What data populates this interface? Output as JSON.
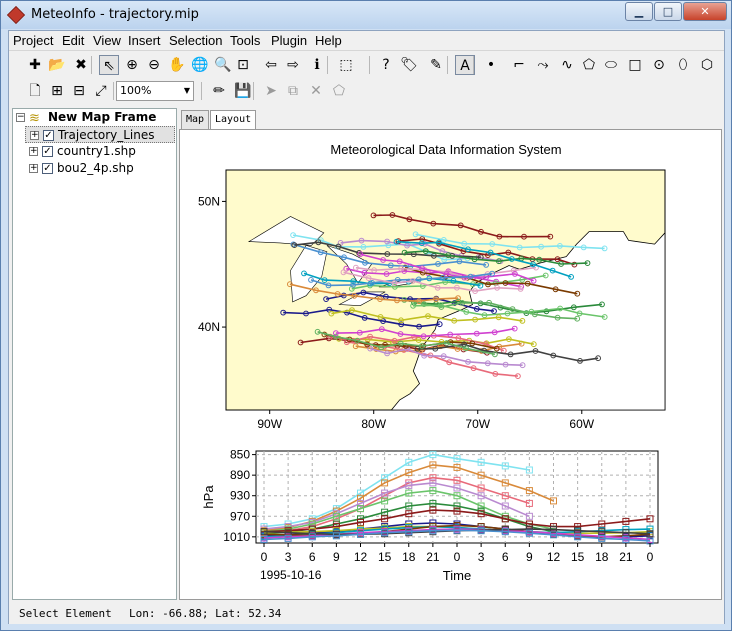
{
  "window": {
    "title": "MeteoInfo - trajectory.mip",
    "min_label": "▁",
    "max_label": "□",
    "close_label": "✕"
  },
  "menu": [
    "Project",
    "Edit",
    "View",
    "Insert",
    "Selection",
    "Tools",
    "Plugin",
    "Help"
  ],
  "toolbar1": [
    {
      "name": "add-layer-icon",
      "glyph": "✚"
    },
    {
      "name": "open-icon",
      "glyph": "📂"
    },
    {
      "name": "remove-layer-icon",
      "glyph": "✖"
    },
    {
      "name": "select-icon",
      "glyph": "⇖"
    },
    {
      "name": "zoom-in-icon",
      "glyph": "⊕"
    },
    {
      "name": "zoom-out-icon",
      "glyph": "⊖"
    },
    {
      "name": "pan-icon",
      "glyph": "✋"
    },
    {
      "name": "full-extent-icon",
      "glyph": "🌐"
    },
    {
      "name": "identify-zoom-icon",
      "glyph": "🔍"
    },
    {
      "name": "zoom-to-layer-icon",
      "glyph": "⊡"
    },
    {
      "name": "back-icon",
      "glyph": "⇦"
    },
    {
      "name": "forward-icon",
      "glyph": "⇨"
    },
    {
      "name": "info-icon",
      "glyph": "ℹ"
    },
    {
      "name": "select-features-icon",
      "glyph": "⬚"
    },
    {
      "name": "help-icon",
      "glyph": "?"
    },
    {
      "name": "label-icon",
      "glyph": "🏷"
    },
    {
      "name": "edit-icon",
      "glyph": "✎"
    },
    {
      "name": "text-icon",
      "glyph": "A"
    },
    {
      "name": "point-icon",
      "glyph": "•"
    },
    {
      "name": "line-icon",
      "glyph": "⌐"
    },
    {
      "name": "freehand-icon",
      "glyph": "⤳"
    },
    {
      "name": "curve-icon",
      "glyph": "∿"
    },
    {
      "name": "polygon-icon",
      "glyph": "⬠"
    },
    {
      "name": "curve-polygon-icon",
      "glyph": "⬭"
    },
    {
      "name": "rectangle-icon",
      "glyph": "□"
    },
    {
      "name": "circle-icon",
      "glyph": "⊙"
    },
    {
      "name": "ellipse-icon",
      "glyph": "⬯"
    },
    {
      "name": "freehand-polygon-icon",
      "glyph": "⬡"
    }
  ],
  "toolbar2": [
    {
      "name": "page-setup-icon",
      "glyph": "🗋"
    },
    {
      "name": "page-zoom-in-icon",
      "glyph": "⊞"
    },
    {
      "name": "page-zoom-out-icon",
      "glyph": "⊟"
    },
    {
      "name": "page-fit-icon",
      "glyph": "⤢"
    },
    {
      "name": "edit-vertices-icon",
      "glyph": "✏"
    },
    {
      "name": "save-edit-icon",
      "glyph": "💾"
    },
    {
      "name": "edit-tool-icon",
      "glyph": "➤"
    },
    {
      "name": "new-feature-icon",
      "glyph": "⧉"
    },
    {
      "name": "delete-feature-icon",
      "glyph": "✕"
    },
    {
      "name": "reshape-icon",
      "glyph": "⬠"
    }
  ],
  "zoom": {
    "value": "100%"
  },
  "legend": {
    "frame": "New Map Frame",
    "layers": [
      "Trajectory_Lines",
      "country1.shp",
      "bou2_4p.shp"
    ]
  },
  "tabs": [
    "Map",
    "Layout"
  ],
  "layout": {
    "title": "Meteorological Data Information System",
    "map": {
      "lon_ticks": [
        {
          "label": "90W",
          "lon": -90
        },
        {
          "label": "80W",
          "lon": -80
        },
        {
          "label": "70W",
          "lon": -70
        },
        {
          "label": "60W",
          "lon": -60
        }
      ],
      "lat_ticks": [
        {
          "label": "50N",
          "lat": 50
        },
        {
          "label": "40N",
          "lat": 40
        }
      ],
      "extent": {
        "lon_min": -94.2,
        "lon_max": -52.0,
        "lat_min": 33.4,
        "lat_max": 52.5
      },
      "land_color": "#fffbcc"
    },
    "profile": {
      "ylabel": "hPa",
      "xlabel": "Time",
      "date_label": "1995-10-16",
      "y_ticks": [
        "850",
        "890",
        "930",
        "970",
        "1010"
      ],
      "x_ticks": [
        "0",
        "3",
        "6",
        "9",
        "12",
        "15",
        "18",
        "21",
        "0",
        "3",
        "6",
        "9",
        "12",
        "15",
        "18",
        "21",
        "0"
      ]
    }
  },
  "chart_data": {
    "type": "line",
    "title": "Meteorological Data Information System",
    "xlabel": "Time",
    "ylabel": "hPa",
    "ylim": [
      1030,
      850
    ],
    "x_ticks": [
      "0",
      "3",
      "6",
      "9",
      "12",
      "15",
      "18",
      "21",
      "0",
      "3",
      "6",
      "9",
      "12",
      "15",
      "18",
      "21",
      "0"
    ],
    "series": [
      {
        "color": "#7fe3f0",
        "values": [
          990,
          985,
          975,
          955,
          925,
          895,
          865,
          850,
          858,
          865,
          872,
          880
        ]
      },
      {
        "color": "#d98a3a",
        "values": [
          998,
          992,
          980,
          960,
          935,
          905,
          885,
          870,
          875,
          890,
          905,
          920,
          940
        ]
      },
      {
        "color": "#e86a7a",
        "values": [
          1000,
          998,
          990,
          975,
          955,
          930,
          905,
          895,
          900,
          915,
          930,
          945
        ]
      },
      {
        "color": "#b98ad0",
        "values": [
          995,
          990,
          982,
          965,
          945,
          925,
          910,
          905,
          915,
          930,
          950,
          970
        ]
      },
      {
        "color": "#6ac46a",
        "values": [
          1000,
          995,
          985,
          970,
          955,
          940,
          925,
          920,
          930,
          950,
          970,
          985,
          995
        ]
      },
      {
        "color": "#2a8a3a",
        "values": [
          1005,
          1000,
          995,
          985,
          975,
          962,
          950,
          945,
          950,
          960,
          975,
          990,
          1000,
          1005
        ]
      },
      {
        "color": "#8b1a1a",
        "values": [
          1000,
          998,
          995,
          990,
          982,
          975,
          965,
          958,
          960,
          965,
          975,
          985,
          990,
          990,
          985,
          980,
          975
        ]
      },
      {
        "color": "#1a1a8b",
        "values": [
          1008,
          1006,
          1003,
          1000,
          995,
          990,
          985,
          983,
          985,
          990,
          995,
          1000,
          1005,
          1008,
          1010,
          1010,
          1008
        ]
      },
      {
        "color": "#c0c020",
        "values": [
          1002,
          1001,
          1000,
          998,
          995,
          993,
          990,
          990,
          992,
          995,
          998,
          1000,
          1002,
          1003,
          1003,
          1002,
          1000
        ]
      },
      {
        "color": "#00a0c0",
        "values": [
          1010,
          1008,
          1005,
          1002,
          998,
          995,
          992,
          990,
          992,
          995,
          998,
          1000,
          1002,
          1000,
          998,
          996,
          995
        ]
      },
      {
        "color": "#7a3a00",
        "values": [
          1005,
          1006,
          1007,
          1006,
          1004,
          1000,
          995,
          990,
          988,
          990,
          995,
          1000,
          1005,
          1008,
          1010,
          1008,
          1005
        ]
      },
      {
        "color": "#d040d0",
        "values": [
          1012,
          1010,
          1008,
          1005,
          1002,
          1000,
          998,
          996,
          995,
          996,
          998,
          1000,
          1003,
          1006,
          1009,
          1012,
          1015
        ]
      },
      {
        "color": "#404040",
        "values": [
          1000,
          1002,
          1004,
          1005,
          1005,
          1004,
          1002,
          1000,
          998,
          997,
          996,
          995,
          996,
          998,
          1000,
          1002,
          1004
        ]
      },
      {
        "color": "#4a90d0",
        "values": [
          1015,
          1013,
          1010,
          1008,
          1005,
          1002,
          1000,
          998,
          997,
          998,
          1000,
          1003,
          1006,
          1010,
          1013,
          1015,
          1018
        ]
      }
    ]
  },
  "status": {
    "mode": "Select Element",
    "coords": "Lon: -66.88; Lat: 52.34"
  }
}
